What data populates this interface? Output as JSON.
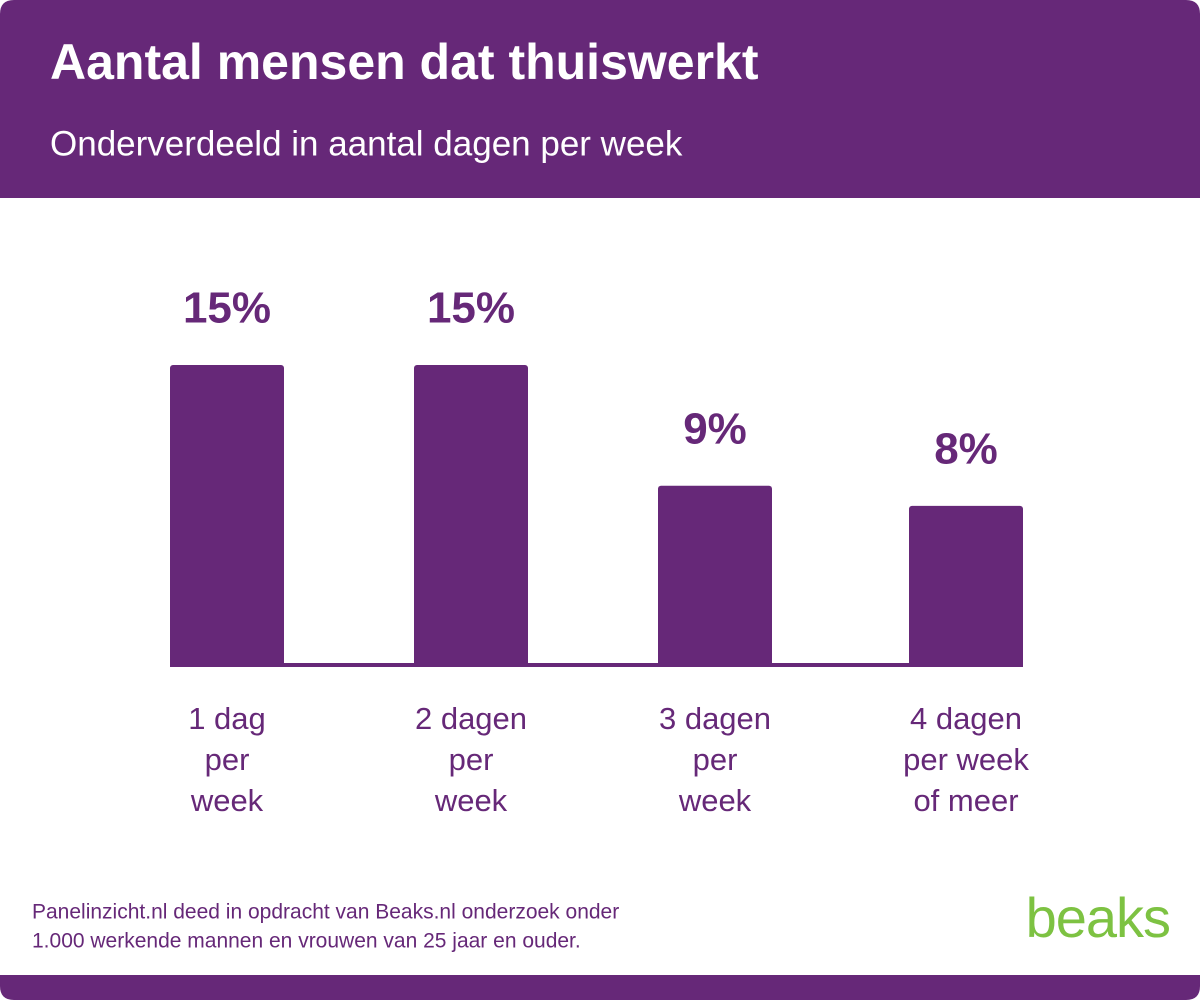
{
  "chart_data": {
    "type": "bar",
    "title": "Aantal mensen dat thuiswerkt",
    "subtitle": "Onderverdeeld in aantal dagen per week",
    "categories": [
      [
        "1 dag",
        "per",
        "week"
      ],
      [
        "2 dagen",
        "per",
        "week"
      ],
      [
        "3 dagen",
        "per",
        "week"
      ],
      [
        "4 dagen",
        "per week",
        "of meer"
      ]
    ],
    "values": [
      15,
      15,
      9,
      8
    ],
    "value_labels": [
      "15%",
      "15%",
      "9%",
      "8%"
    ],
    "color": "#662878",
    "ylim": [
      0,
      15
    ],
    "footnote": [
      "Panelinzicht.nl deed in opdracht van Beaks.nl onderzoek onder",
      "1.000 werkende mannen en vrouwen van 25 jaar en ouder."
    ],
    "logo": "beaks"
  }
}
